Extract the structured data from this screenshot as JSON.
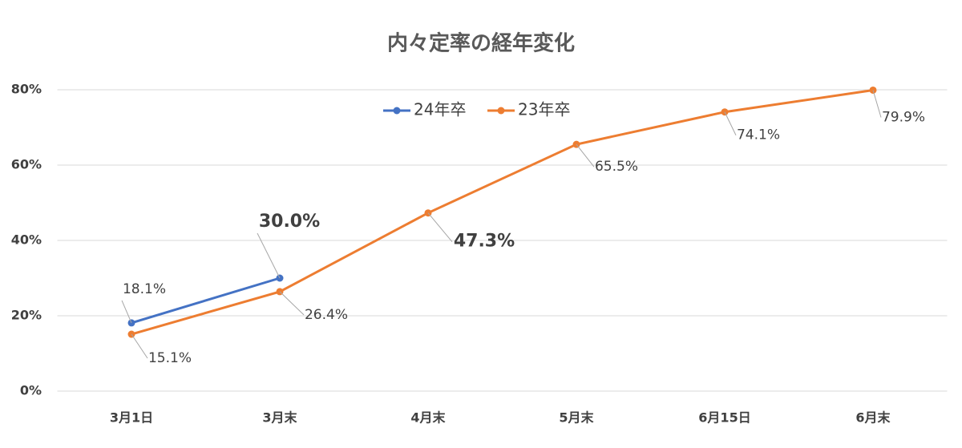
{
  "chart_data": {
    "type": "line",
    "title": "内々定率の経年変化",
    "categories": [
      "3月1日",
      "3月末",
      "4月末",
      "5月末",
      "6月15日",
      "6月末"
    ],
    "series": [
      {
        "name": "24年卒",
        "color": "#4472c4",
        "values": [
          18.1,
          30.0,
          null,
          null,
          null,
          null
        ],
        "value_labels": [
          "18.1%",
          "30.0%",
          null,
          null,
          null,
          null
        ]
      },
      {
        "name": "23年卒",
        "color": "#ed7d31",
        "values": [
          15.1,
          26.4,
          47.3,
          65.5,
          74.1,
          79.9
        ],
        "value_labels": [
          "15.1%",
          "26.4%",
          "47.3%",
          "65.5%",
          "74.1%",
          "79.9%"
        ]
      }
    ],
    "ylim": [
      0,
      80
    ],
    "yticks": [
      {
        "value": 0,
        "label": "0%"
      },
      {
        "value": 20,
        "label": "20%"
      },
      {
        "value": 40,
        "label": "40%"
      },
      {
        "value": 60,
        "label": "60%"
      },
      {
        "value": 80,
        "label": "80%"
      }
    ],
    "grid": true,
    "legend": "top"
  }
}
